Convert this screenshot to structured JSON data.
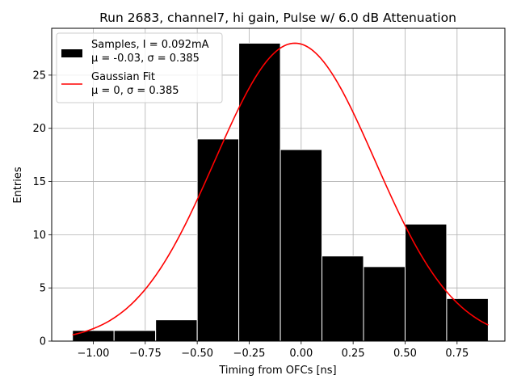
{
  "chart_data": {
    "type": "bar",
    "title": "Run 2683, channel7, hi gain, Pulse w/ 6.0 dB Attenuation",
    "xlabel": "Timing from OFCs [ns]",
    "ylabel": "Entries",
    "xlim": [
      -1.2,
      0.98
    ],
    "ylim": [
      0,
      29.4
    ],
    "xticks": [
      -1.0,
      -0.75,
      -0.5,
      -0.25,
      0.0,
      0.25,
      0.5,
      0.75
    ],
    "xtick_labels": [
      "−1.00",
      "−0.75",
      "−0.50",
      "−0.25",
      "0.00",
      "0.25",
      "0.50",
      "0.75"
    ],
    "yticks": [
      0,
      5,
      10,
      15,
      20,
      25
    ],
    "ytick_labels": [
      "0",
      "5",
      "10",
      "15",
      "20",
      "25"
    ],
    "grid": true,
    "bins": [
      {
        "x0": -1.1,
        "x1": -0.9,
        "count": 1
      },
      {
        "x0": -0.9,
        "x1": -0.7,
        "count": 1
      },
      {
        "x0": -0.7,
        "x1": -0.5,
        "count": 2
      },
      {
        "x0": -0.5,
        "x1": -0.3,
        "count": 19
      },
      {
        "x0": -0.3,
        "x1": -0.1,
        "count": 28
      },
      {
        "x0": -0.1,
        "x1": 0.1,
        "count": 18
      },
      {
        "x0": 0.1,
        "x1": 0.3,
        "count": 8
      },
      {
        "x0": 0.3,
        "x1": 0.5,
        "count": 7
      },
      {
        "x0": 0.5,
        "x1": 0.7,
        "count": 11
      },
      {
        "x0": 0.7,
        "x1": 0.9,
        "count": 4
      }
    ],
    "fit": {
      "type": "gaussian",
      "mu": -0.03,
      "sigma": 0.385,
      "amplitude": 28,
      "x_range": [
        -1.1,
        0.9
      ],
      "color": "#ff0000"
    },
    "bar_color": "#000000",
    "bar_edge_color": "#ffffff",
    "legend": {
      "position": "top-left",
      "entries": [
        {
          "line1": "Samples, I = 0.092mA",
          "line2": "μ = -0.03, σ = 0.385"
        },
        {
          "line1": "Gaussian Fit",
          "line2": "μ = 0, σ = 0.385"
        }
      ]
    }
  }
}
